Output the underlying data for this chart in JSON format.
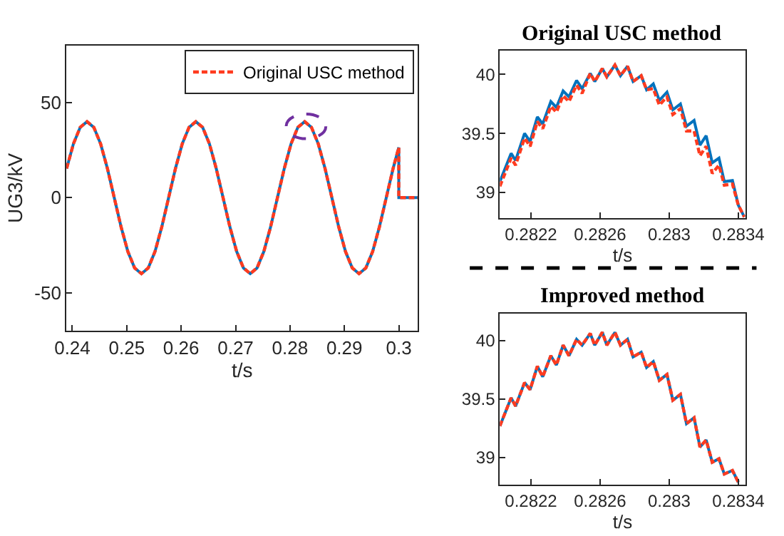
{
  "chart_data": [
    {
      "type": "line",
      "xlabel": "t/s",
      "ylabel": "UG3/kV",
      "legend": "top right",
      "x": [
        0.23895,
        0.2402,
        0.24145,
        0.2427,
        0.24395,
        0.2452,
        0.24645,
        0.2477,
        0.24895,
        0.2502,
        0.25145,
        0.2527,
        0.25395,
        0.2552,
        0.25645,
        0.2577,
        0.25895,
        0.2602,
        0.26145,
        0.2627,
        0.26395,
        0.2652,
        0.26645,
        0.2677,
        0.26895,
        0.2702,
        0.27145,
        0.2727,
        0.27395,
        0.2752,
        0.27645,
        0.2777,
        0.27895,
        0.2802,
        0.28145,
        0.2827,
        0.28395,
        0.2852,
        0.28645,
        0.2877,
        0.28895,
        0.2902,
        0.29145,
        0.2927,
        0.29395,
        0.2952,
        0.29645,
        0.2977,
        0.29895,
        0.3,
        0.3,
        0.3035
      ],
      "series": [
        {
          "color": "#0072bd",
          "line_style": "solid",
          "values": [
            15.3,
            28.3,
            37.0,
            40,
            37.0,
            28.3,
            15.3,
            0,
            -15.3,
            -28.3,
            -37.0,
            -40,
            -37.0,
            -28.3,
            -15.3,
            0,
            15.3,
            28.3,
            37.0,
            40,
            37.0,
            28.3,
            15.3,
            0,
            -15.3,
            -28.3,
            -37.0,
            -40,
            -37.0,
            -28.3,
            -15.3,
            0,
            15.3,
            28.3,
            37.0,
            40,
            37.0,
            28.3,
            15.3,
            0,
            -15.3,
            -28.3,
            -37.0,
            -40,
            -37.0,
            -28.3,
            -15.3,
            0,
            15.3,
            26.4,
            0,
            0
          ]
        },
        {
          "name": "Original USC method",
          "color": "#ff3b1f",
          "line_style": "dashed",
          "values": [
            15.3,
            28.3,
            37.0,
            40,
            37.0,
            28.3,
            15.3,
            0,
            -15.3,
            -28.3,
            -37.0,
            -40,
            -37.0,
            -28.3,
            -15.3,
            0,
            15.3,
            28.3,
            37.0,
            40,
            37.0,
            28.3,
            15.3,
            0,
            -15.3,
            -28.3,
            -37.0,
            -40,
            -37.0,
            -28.3,
            -15.3,
            0,
            15.3,
            28.3,
            37.0,
            40,
            37.0,
            28.3,
            15.3,
            0,
            -15.3,
            -28.3,
            -37.0,
            -40,
            -37.0,
            -28.3,
            -15.3,
            0,
            15.3,
            26.4,
            0,
            0
          ]
        }
      ],
      "xlim": [
        0.2389,
        0.3035
      ],
      "ylim": [
        -70,
        80
      ],
      "xticks": [
        0.24,
        0.25,
        0.26,
        0.27,
        0.28,
        0.29,
        0.3
      ],
      "yticks": [
        -50,
        0,
        50
      ]
    },
    {
      "type": "line",
      "title": "Original USC method",
      "xlabel": "t/s",
      "x": [
        0.28202,
        0.282085,
        0.282111,
        0.282163,
        0.282195,
        0.282237,
        0.282268,
        0.282315,
        0.282347,
        0.282386,
        0.28242,
        0.282464,
        0.282496,
        0.282543,
        0.282569,
        0.282613,
        0.282639,
        0.282686,
        0.282718,
        0.282759,
        0.282791,
        0.282838,
        0.282869,
        0.282908,
        0.282943,
        0.282987,
        0.283021,
        0.283065,
        0.2831,
        0.283144,
        0.283178,
        0.283214,
        0.283249,
        0.283288,
        0.283319,
        0.283366,
        0.2834,
        0.283435
      ],
      "series": [
        {
          "color": "#0072bd",
          "line_style": "solid",
          "values": [
            39.09,
            39.33,
            39.27,
            39.5,
            39.43,
            39.64,
            39.58,
            39.77,
            39.72,
            39.86,
            39.81,
            39.95,
            39.88,
            40.01,
            39.94,
            40.05,
            39.98,
            40.08,
            39.99,
            40.07,
            39.94,
            39.99,
            39.87,
            39.92,
            39.78,
            39.85,
            39.7,
            39.75,
            39.56,
            39.61,
            39.4,
            39.48,
            39.25,
            39.29,
            39.09,
            39.1,
            38.89,
            38.79
          ]
        },
        {
          "color": "#ff3b1f",
          "line_style": "dashed",
          "values": [
            39.05,
            39.29,
            39.23,
            39.46,
            39.39,
            39.6,
            39.54,
            39.73,
            39.68,
            39.82,
            39.77,
            39.91,
            39.84,
            40.01,
            39.94,
            40.05,
            39.98,
            40.08,
            39.99,
            40.07,
            39.94,
            39.99,
            39.87,
            39.88,
            39.74,
            39.81,
            39.66,
            39.71,
            39.52,
            39.52,
            39.31,
            39.39,
            39.16,
            39.23,
            39.06,
            39.07,
            38.89,
            38.79
          ]
        }
      ],
      "xlim": [
        0.28202,
        0.28344
      ],
      "ylim": [
        38.78,
        40.2
      ],
      "xticks": [
        0.2822,
        0.2826,
        0.283,
        0.2834
      ],
      "yticks": [
        39,
        39.5,
        40
      ]
    },
    {
      "type": "line",
      "title": "Improved method",
      "xlabel": "t/s",
      "x": [
        0.28202,
        0.282085,
        0.282111,
        0.282163,
        0.282195,
        0.282237,
        0.282268,
        0.282315,
        0.282347,
        0.282386,
        0.28242,
        0.282464,
        0.282496,
        0.282543,
        0.282569,
        0.282613,
        0.282639,
        0.282686,
        0.282718,
        0.282759,
        0.282791,
        0.282838,
        0.282869,
        0.282908,
        0.282943,
        0.282987,
        0.283021,
        0.283065,
        0.2831,
        0.283144,
        0.283178,
        0.283214,
        0.283249,
        0.283288,
        0.283319,
        0.283366,
        0.2834
      ],
      "series": [
        {
          "color": "#0072bd",
          "line_style": "solid",
          "values": [
            39.27,
            39.51,
            39.44,
            39.64,
            39.58,
            39.78,
            39.69,
            39.87,
            39.79,
            39.96,
            39.87,
            40.01,
            39.96,
            40.06,
            39.96,
            40.07,
            39.96,
            40.07,
            39.96,
            40.01,
            39.86,
            39.9,
            39.77,
            39.82,
            39.66,
            39.71,
            39.49,
            39.54,
            39.29,
            39.34,
            39.09,
            39.15,
            38.96,
            38.99,
            38.86,
            38.89,
            38.79
          ]
        },
        {
          "color": "#ff3b1f",
          "line_style": "dashed",
          "values": [
            39.27,
            39.51,
            39.44,
            39.64,
            39.58,
            39.78,
            39.69,
            39.87,
            39.79,
            39.96,
            39.87,
            40.01,
            39.96,
            40.06,
            39.96,
            40.07,
            39.96,
            40.07,
            39.96,
            40.01,
            39.86,
            39.9,
            39.77,
            39.82,
            39.66,
            39.71,
            39.49,
            39.54,
            39.29,
            39.34,
            39.09,
            39.15,
            38.96,
            38.99,
            38.86,
            38.89,
            38.79
          ]
        }
      ],
      "xlim": [
        0.28202,
        0.28344
      ],
      "ylim": [
        38.77,
        40.23
      ],
      "xticks": [
        0.2822,
        0.2826,
        0.283,
        0.2834
      ],
      "yticks": [
        39,
        39.5,
        40
      ]
    }
  ]
}
